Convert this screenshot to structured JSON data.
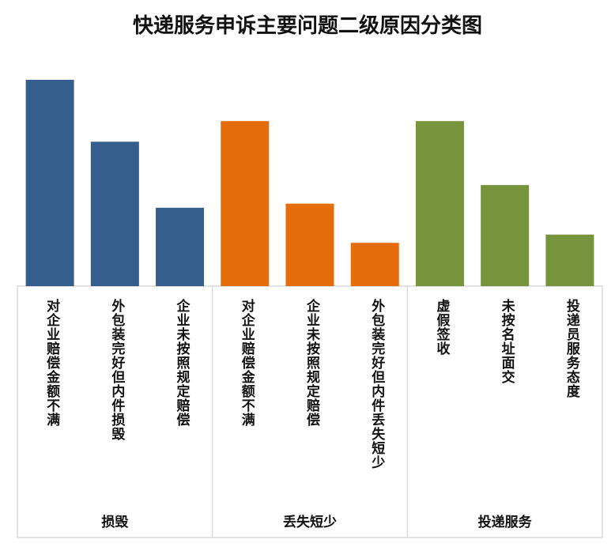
{
  "chart_data": {
    "type": "bar",
    "title": "快递服务申诉主要问题二级原因分类图",
    "groups": [
      {
        "name": "损毁",
        "color": "#355E8D",
        "categories": [
          "对企业赔偿金额不满",
          "外包装完好但内件损毁",
          "企业未按照规定赔偿"
        ],
        "values": [
          100,
          70,
          38
        ]
      },
      {
        "name": "丢失短少",
        "color": "#E46C0A",
        "categories": [
          "对企业赔偿金额不满",
          "企业未按照规定赔偿",
          "外包装完好但内件丢失短少"
        ],
        "values": [
          80,
          40,
          21
        ]
      },
      {
        "name": "投递服务",
        "color": "#77933C",
        "categories": [
          "虚假签收",
          "未按名址面交",
          "投递员服务态度"
        ],
        "values": [
          80,
          49,
          25
        ]
      }
    ],
    "y_axis_shown": false,
    "grid": false,
    "legend": "none"
  }
}
